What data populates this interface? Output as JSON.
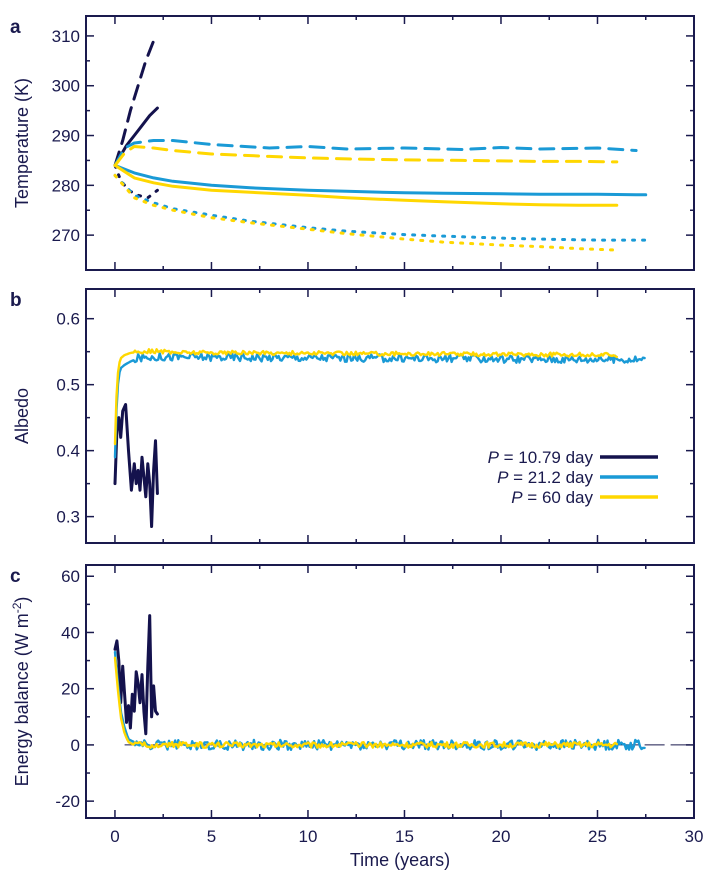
{
  "colors": {
    "axis": "#1a1a4e",
    "p10": "#14124d",
    "p21": "#1a9ad6",
    "p60": "#ffd700"
  },
  "legend": {
    "p_symbol": "P",
    "entries": [
      {
        "series": "p10",
        "text": " = 10.79 day"
      },
      {
        "series": "p21",
        "text": " = 21.2 day"
      },
      {
        "series": "p60",
        "text": " = 60 day"
      }
    ]
  },
  "xaxis": {
    "label": "Time (years)",
    "ticks": [
      "0",
      "5",
      "10",
      "15",
      "20",
      "25",
      "30"
    ],
    "range": [
      -1.5,
      30
    ]
  },
  "chart_data": [
    {
      "panel": "a",
      "type": "line",
      "ylabel": "Temperature (K)",
      "ylim": [
        263,
        314
      ],
      "yticks": [
        "270",
        "280",
        "290",
        "300",
        "310"
      ],
      "series": [
        {
          "key": "p10",
          "style": "dashed",
          "x": [
            0,
            0.4,
            0.8,
            1.2,
            1.6,
            2.0
          ],
          "y": [
            284,
            289,
            295,
            300,
            305,
            309
          ]
        },
        {
          "key": "p10",
          "style": "solid",
          "x": [
            0,
            0.3,
            0.6,
            1.0,
            1.4,
            1.8,
            2.2
          ],
          "y": [
            284,
            286,
            288,
            290,
            292,
            294,
            295.5
          ]
        },
        {
          "key": "p10",
          "style": "dotted",
          "x": [
            0,
            0.3,
            0.7,
            1.2,
            1.7,
            2.2
          ],
          "y": [
            284,
            281,
            279,
            278,
            277.5,
            279
          ]
        },
        {
          "key": "p21",
          "style": "dashed",
          "x": [
            0,
            0.5,
            1,
            2,
            3,
            5,
            8,
            10,
            12,
            15,
            18,
            20,
            22,
            25,
            27
          ],
          "y": [
            284,
            287.5,
            288.5,
            289,
            289,
            288.2,
            287.5,
            287.8,
            287.3,
            287.5,
            287.2,
            287.6,
            287.3,
            287.5,
            287
          ]
        },
        {
          "key": "p21",
          "style": "solid",
          "x": [
            0,
            1,
            2,
            3,
            5,
            7,
            10,
            12,
            15,
            17,
            20,
            22,
            25,
            27.5
          ],
          "y": [
            284,
            282.5,
            281.5,
            280.8,
            280,
            279.5,
            279,
            278.8,
            278.5,
            278.4,
            278.3,
            278.2,
            278.2,
            278.1
          ]
        },
        {
          "key": "p21",
          "style": "dotted",
          "x": [
            0,
            1,
            2,
            3,
            5,
            7,
            10,
            12,
            15,
            17,
            20,
            22,
            25,
            27.5
          ],
          "y": [
            282,
            278,
            276.5,
            275.3,
            274,
            272.8,
            271.5,
            270.8,
            270.1,
            269.8,
            269.4,
            269.2,
            269,
            269
          ]
        },
        {
          "key": "p60",
          "style": "dashed",
          "x": [
            0,
            0.5,
            1,
            2,
            3,
            5,
            8,
            10,
            12,
            15,
            18,
            20,
            22,
            24,
            26
          ],
          "y": [
            284,
            286.5,
            287.8,
            287.5,
            287,
            286.3,
            285.8,
            285.5,
            285.3,
            285.1,
            285,
            284.9,
            284.8,
            284.8,
            284.7
          ]
        },
        {
          "key": "p60",
          "style": "solid",
          "x": [
            0,
            1,
            2,
            3,
            5,
            7,
            10,
            12,
            15,
            17,
            20,
            22,
            24,
            26
          ],
          "y": [
            284,
            281.5,
            280.5,
            279.8,
            279,
            278.6,
            278,
            277.5,
            277,
            276.7,
            276.3,
            276.1,
            276,
            276
          ]
        },
        {
          "key": "p60",
          "style": "dotted",
          "x": [
            0,
            1,
            2,
            3,
            5,
            7,
            10,
            12,
            15,
            17,
            20,
            22,
            24,
            26
          ],
          "y": [
            282,
            277.5,
            276,
            275,
            273.5,
            272.5,
            271.2,
            270.3,
            269.2,
            268.6,
            268,
            267.7,
            267.3,
            267
          ]
        }
      ]
    },
    {
      "panel": "b",
      "type": "line",
      "ylabel": "Albedo",
      "ylim": [
        0.26,
        0.645
      ],
      "yticks": [
        "0.3",
        "0.4",
        "0.5",
        "0.6"
      ],
      "series": [
        {
          "key": "p10",
          "style": "solid",
          "x": [
            0,
            0.1,
            0.2,
            0.3,
            0.4,
            0.55,
            0.7,
            0.85,
            1.0,
            1.1,
            1.2,
            1.3,
            1.4,
            1.5,
            1.6,
            1.7,
            1.8,
            1.9,
            2.0,
            2.1,
            2.2
          ],
          "y": [
            0.35,
            0.43,
            0.45,
            0.42,
            0.46,
            0.47,
            0.4,
            0.34,
            0.38,
            0.35,
            0.37,
            0.34,
            0.39,
            0.36,
            0.33,
            0.38,
            0.35,
            0.285,
            0.37,
            0.415,
            0.335
          ]
        },
        {
          "key": "p21",
          "style": "noisy",
          "base": 0.54,
          "amp": 0.006,
          "x": [
            0,
            0.1,
            0.2,
            0.3,
            0.5,
            0.8,
            1.2,
            2,
            3,
            27.5
          ],
          "y": [
            0.39,
            0.48,
            0.515,
            0.525,
            0.53,
            0.535,
            0.54,
            0.542,
            0.542,
            0.538
          ]
        },
        {
          "key": "p60",
          "style": "noisy",
          "base": 0.548,
          "amp": 0.003,
          "x": [
            0,
            0.1,
            0.2,
            0.3,
            0.5,
            0.8,
            1.2,
            2,
            3,
            26
          ],
          "y": [
            0.41,
            0.5,
            0.53,
            0.54,
            0.545,
            0.548,
            0.55,
            0.551,
            0.549,
            0.545
          ]
        }
      ]
    },
    {
      "panel": "c",
      "type": "line",
      "ylabel": "Energy balance (W m",
      "ylabel_sup": "-2",
      "ylabel_end": ")",
      "ylim": [
        -26,
        64
      ],
      "yticks": [
        "-20",
        "0",
        "20",
        "40",
        "60"
      ],
      "series": [
        {
          "key": "p10",
          "style": "solid",
          "x": [
            0,
            0.1,
            0.2,
            0.3,
            0.4,
            0.5,
            0.6,
            0.7,
            0.8,
            0.9,
            1.0,
            1.1,
            1.2,
            1.3,
            1.4,
            1.5,
            1.6,
            1.7,
            1.8,
            1.9,
            2.0,
            2.1,
            2.2
          ],
          "y": [
            34,
            37,
            30,
            15,
            28,
            18,
            8,
            14,
            6,
            18,
            12,
            26,
            22,
            15,
            25,
            12,
            4,
            28,
            46,
            10,
            21,
            12,
            11
          ]
        },
        {
          "key": "p21",
          "style": "noisy",
          "base": 0,
          "amp": 1.8,
          "x": [
            0,
            0.15,
            0.3,
            0.5,
            0.7,
            1.0,
            1.5,
            27.5
          ],
          "y": [
            33,
            22,
            12,
            6,
            2,
            1,
            0,
            0
          ]
        },
        {
          "key": "p60",
          "style": "noisy",
          "base": 0,
          "amp": 1.0,
          "x": [
            0,
            0.15,
            0.3,
            0.5,
            0.7,
            1.0,
            1.5,
            26
          ],
          "y": [
            31,
            20,
            10,
            4,
            1,
            0,
            0,
            0
          ]
        }
      ]
    }
  ]
}
